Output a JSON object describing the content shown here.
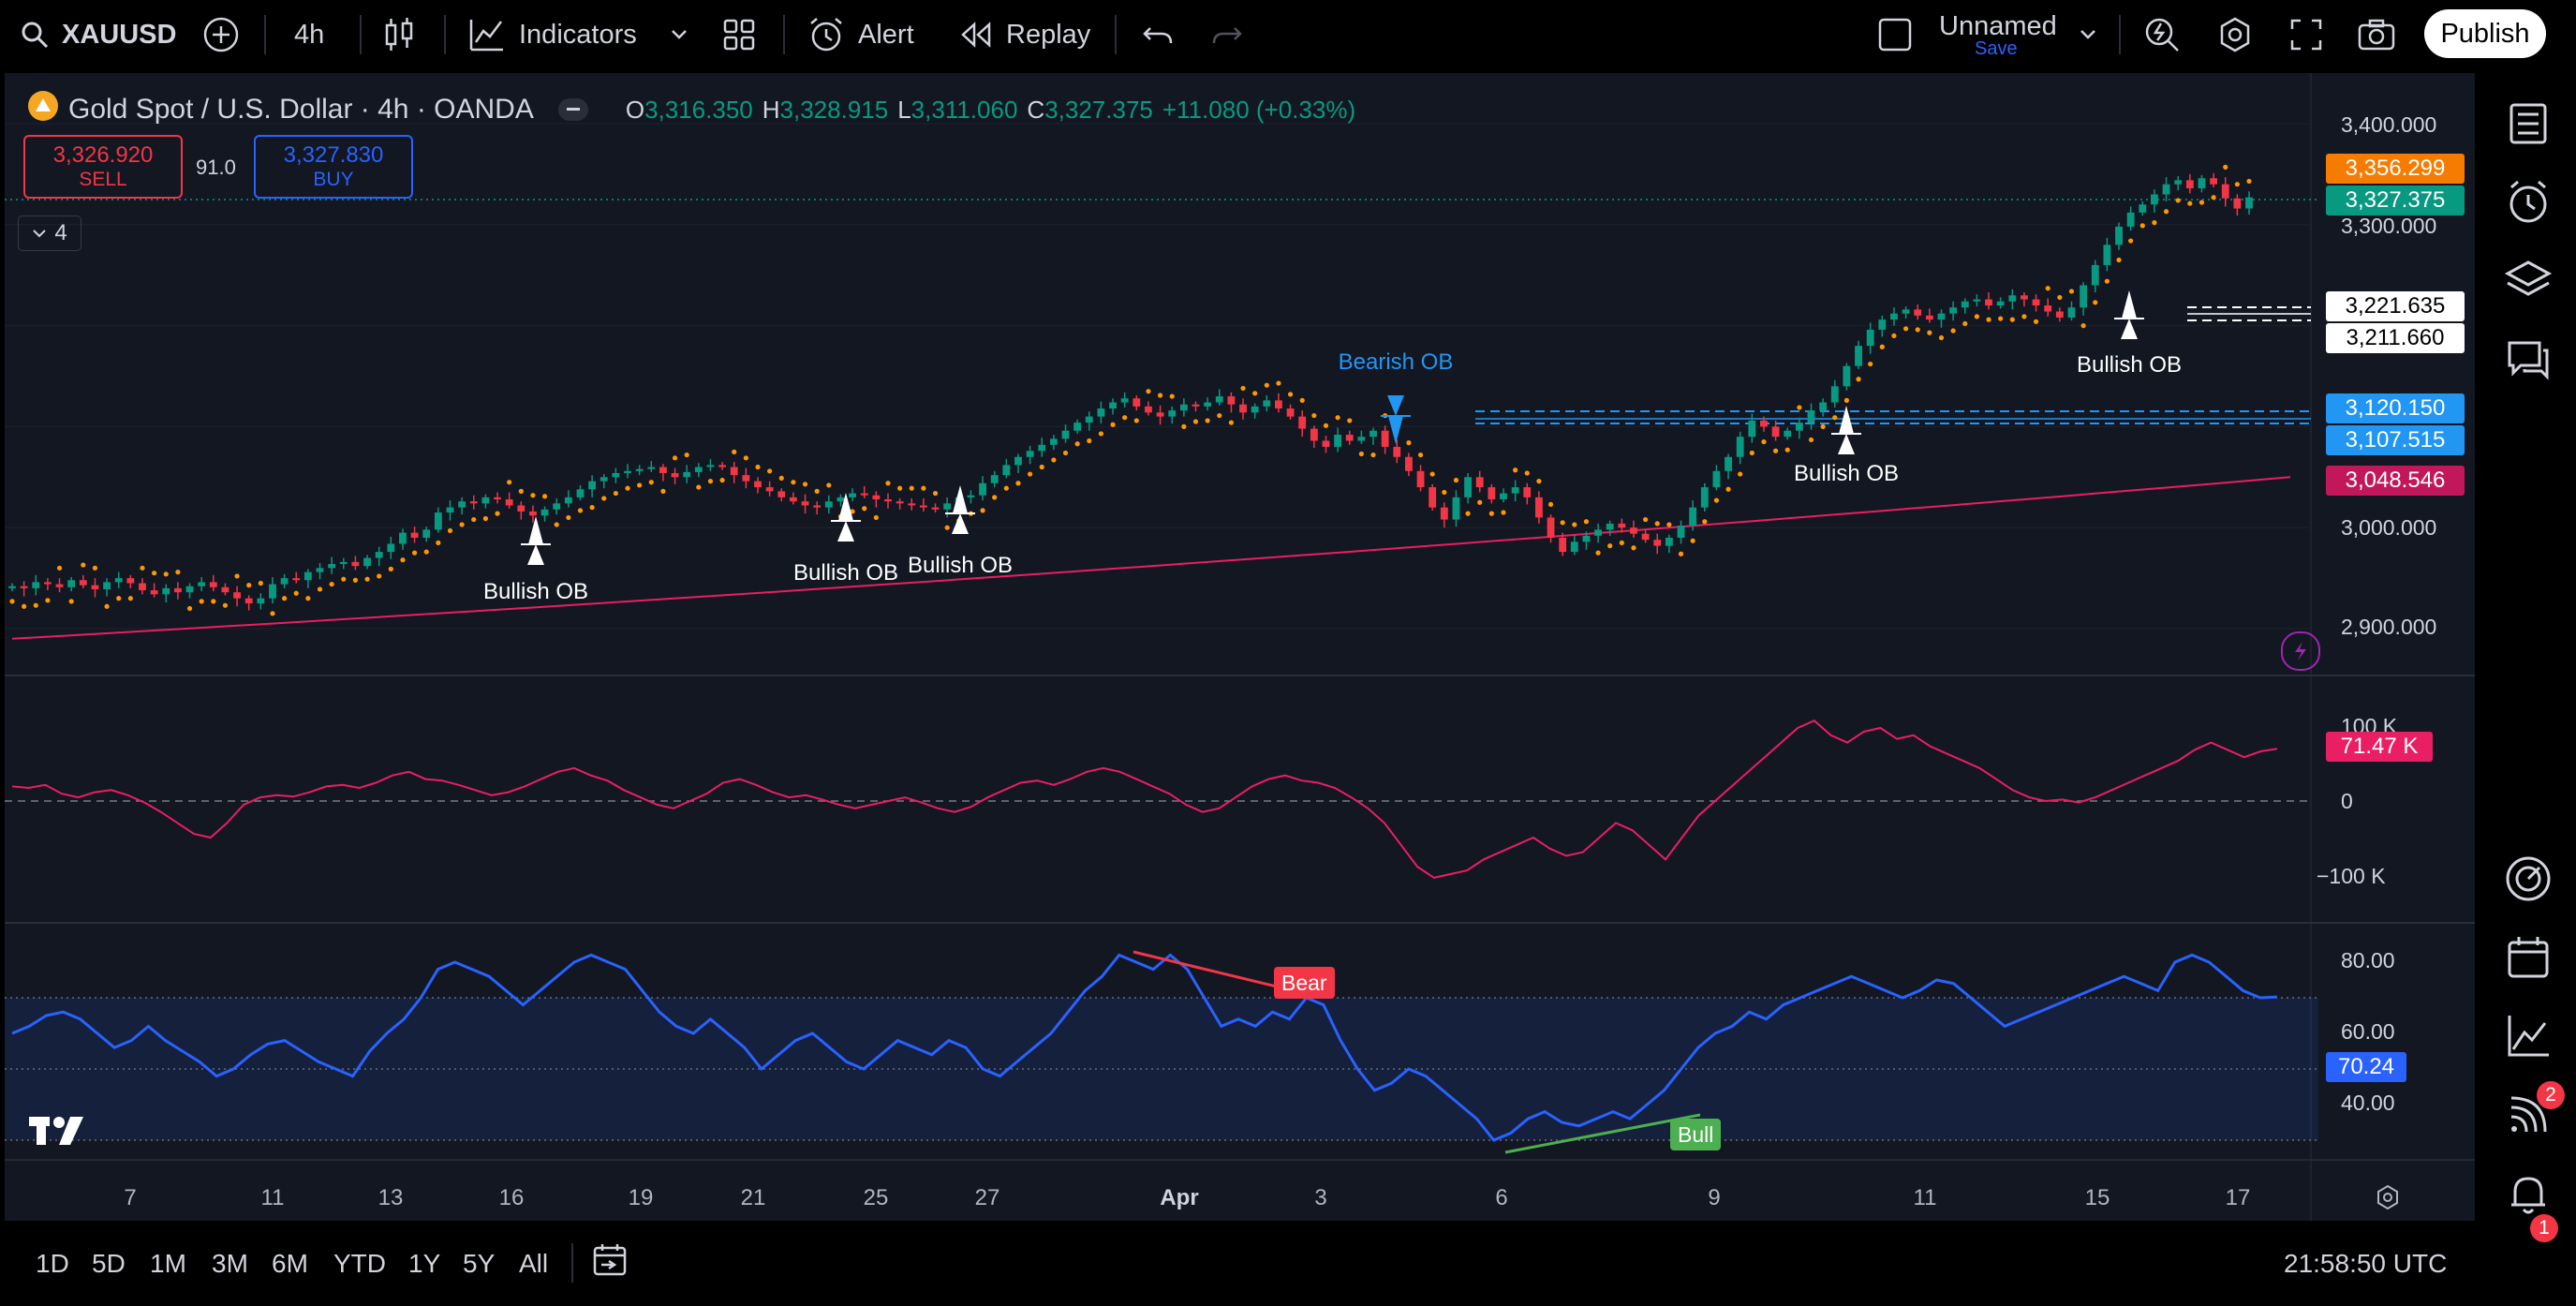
{
  "toolbar": {
    "symbol": "XAUUSD",
    "interval": "4h",
    "indicators_label": "Indicators",
    "alert_label": "Alert",
    "replay_label": "Replay",
    "layout_name": "Unnamed",
    "layout_save": "Save",
    "publish_label": "Publish"
  },
  "legend": {
    "title": "Gold Spot / U.S. Dollar · 4h · OANDA",
    "o_key": "O",
    "o": "3,316.350",
    "h_key": "H",
    "h": "3,328.915",
    "l_key": "L",
    "l": "3,311.060",
    "c_key": "C",
    "c": "3,327.375",
    "change": "+11.080 (+0.33%)",
    "sell_price": "3,326.920",
    "sell_label": "SELL",
    "spread": "91.0",
    "buy_price": "3,327.830",
    "buy_label": "BUY",
    "collapsed_count": "4"
  },
  "price_axis": [
    "3,400.000",
    "3,300.000",
    "3,000.000",
    "2,900.000"
  ],
  "price_tags": [
    {
      "text": "3,356.299",
      "bg": "#f57c00",
      "fg": "#ffffff"
    },
    {
      "text": "3,327.375",
      "bg": "#089981",
      "fg": "#ffffff"
    },
    {
      "text": "3,221.635",
      "bg": "#ffffff",
      "fg": "#000000"
    },
    {
      "text": "3,211.660",
      "bg": "#ffffff",
      "fg": "#000000"
    },
    {
      "text": "3,120.150",
      "bg": "#2196f3",
      "fg": "#ffffff"
    },
    {
      "text": "3,107.515",
      "bg": "#2196f3",
      "fg": "#ffffff"
    },
    {
      "text": "3,048.546",
      "bg": "#c2185b",
      "fg": "#ffffff"
    }
  ],
  "osc_axis": [
    "100 K",
    "0",
    "−100 K"
  ],
  "osc_tag": "71.47 K",
  "rsi_axis": [
    "80.00",
    "60.00",
    "40.00"
  ],
  "rsi_tag": "70.24",
  "ob_labels": [
    "Bullish OB",
    "Bullish OB",
    "Bullish OB",
    "Bearish OB",
    "Bullish OB",
    "Bullish OB"
  ],
  "signals": {
    "bear": "Bear",
    "bull": "Bull"
  },
  "time_axis": [
    "7",
    "11",
    "13",
    "16",
    "19",
    "21",
    "25",
    "27",
    "Apr",
    "3",
    "6",
    "9",
    "11",
    "15",
    "17"
  ],
  "ranges": [
    "1D",
    "5D",
    "1M",
    "3M",
    "6M",
    "YTD",
    "1Y",
    "5Y",
    "All"
  ],
  "clock": "21:58:50 UTC",
  "badges": {
    "streams": "2",
    "notifications": "1"
  },
  "colors": {
    "up": "#089981",
    "down": "#f23645",
    "sar": "#ff9800",
    "ma": "#e91e63",
    "rsi": "#2962ff",
    "osc": "#e91e63"
  },
  "chart_data": {
    "type": "candlestick",
    "ylim": [
      2880,
      3420
    ],
    "close": [
      2942,
      2940,
      2946,
      2944,
      2941,
      2948,
      2943,
      2939,
      2946,
      2950,
      2945,
      2938,
      2934,
      2940,
      2936,
      2942,
      2946,
      2941,
      2936,
      2930,
      2925,
      2930,
      2944,
      2950,
      2948,
      2956,
      2960,
      2964,
      2966,
      2962,
      2970,
      2976,
      2984,
      2995,
      2990,
      2998,
      3015,
      3020,
      3026,
      3024,
      3030,
      3028,
      3022,
      3016,
      3012,
      3018,
      3024,
      3030,
      3038,
      3046,
      3050,
      3054,
      3056,
      3058,
      3060,
      3054,
      3050,
      3055,
      3060,
      3062,
      3060,
      3052,
      3046,
      3040,
      3036,
      3030,
      3026,
      3022,
      3020,
      3026,
      3030,
      3034,
      3032,
      3028,
      3026,
      3024,
      3022,
      3020,
      3018,
      3024,
      3030,
      3032,
      3044,
      3052,
      3062,
      3070,
      3076,
      3082,
      3088,
      3096,
      3104,
      3110,
      3118,
      3124,
      3128,
      3120,
      3114,
      3110,
      3116,
      3122,
      3120,
      3124,
      3130,
      3122,
      3114,
      3120,
      3126,
      3118,
      3110,
      3098,
      3086,
      3080,
      3092,
      3086,
      3090,
      3096,
      3080,
      3070,
      3056,
      3040,
      3020,
      3008,
      3030,
      3050,
      3040,
      3028,
      3034,
      3040,
      3030,
      3010,
      2990,
      2976,
      2986,
      2992,
      2998,
      3004,
      3000,
      2994,
      2988,
      2982,
      2990,
      3002,
      3020,
      3040,
      3056,
      3070,
      3090,
      3106,
      3100,
      3090,
      3096,
      3104,
      3116,
      3124,
      3140,
      3160,
      3180,
      3196,
      3206,
      3212,
      3216,
      3210,
      3206,
      3212,
      3218,
      3224,
      3226,
      3220,
      3224,
      3230,
      3226,
      3220,
      3214,
      3208,
      3218,
      3240,
      3260,
      3280,
      3298,
      3312,
      3320,
      3330,
      3340,
      3344,
      3336,
      3346,
      3340,
      3326,
      3316,
      3327
    ],
    "sma": {
      "start": 2890,
      "end": 3050
    },
    "osc_range": [
      -140000,
      160000
    ],
    "osc": [
      20000,
      18000,
      22000,
      10000,
      5000,
      12000,
      15000,
      8000,
      -2000,
      -15000,
      -30000,
      -45000,
      -50000,
      -30000,
      -5000,
      5000,
      8000,
      6000,
      12000,
      20000,
      22000,
      18000,
      25000,
      35000,
      40000,
      30000,
      28000,
      22000,
      15000,
      8000,
      12000,
      20000,
      30000,
      40000,
      45000,
      35000,
      28000,
      15000,
      5000,
      -5000,
      -10000,
      0,
      10000,
      25000,
      30000,
      22000,
      12000,
      5000,
      8000,
      2000,
      -5000,
      -10000,
      -5000,
      0,
      5000,
      -2000,
      -10000,
      -15000,
      -8000,
      5000,
      15000,
      25000,
      28000,
      22000,
      30000,
      40000,
      45000,
      40000,
      30000,
      20000,
      10000,
      -5000,
      -15000,
      -10000,
      5000,
      20000,
      30000,
      35000,
      28000,
      25000,
      18000,
      5000,
      -10000,
      -30000,
      -60000,
      -90000,
      -105000,
      -100000,
      -95000,
      -80000,
      -70000,
      -60000,
      -50000,
      -65000,
      -75000,
      -70000,
      -50000,
      -30000,
      -40000,
      -60000,
      -80000,
      -50000,
      -20000,
      0,
      20000,
      40000,
      60000,
      80000,
      100000,
      110000,
      90000,
      80000,
      95000,
      100000,
      85000,
      90000,
      75000,
      65000,
      55000,
      45000,
      30000,
      15000,
      5000,
      0,
      2000,
      -2000,
      5000,
      15000,
      25000,
      35000,
      45000,
      55000,
      70000,
      80000,
      70000,
      60000,
      68000,
      71470
    ],
    "rsi_range": [
      25,
      90
    ],
    "rsi": [
      60,
      62,
      65,
      66,
      64,
      60,
      56,
      58,
      62,
      58,
      55,
      52,
      48,
      50,
      54,
      57,
      58,
      55,
      52,
      50,
      48,
      55,
      60,
      64,
      70,
      78,
      80,
      78,
      76,
      72,
      68,
      72,
      76,
      80,
      82,
      80,
      78,
      72,
      66,
      62,
      60,
      64,
      60,
      56,
      50,
      54,
      58,
      60,
      56,
      52,
      50,
      54,
      58,
      56,
      54,
      58,
      56,
      50,
      48,
      52,
      56,
      60,
      66,
      72,
      76,
      82,
      80,
      78,
      82,
      78,
      70,
      62,
      64,
      62,
      66,
      64,
      70,
      68,
      58,
      50,
      44,
      46,
      50,
      48,
      44,
      40,
      36,
      30,
      32,
      36,
      38,
      35,
      34,
      36,
      38,
      36,
      40,
      44,
      50,
      56,
      60,
      62,
      66,
      64,
      68,
      70,
      72,
      74,
      76,
      74,
      72,
      70,
      72,
      75,
      74,
      70,
      66,
      62,
      64,
      66,
      68,
      70,
      72,
      74,
      76,
      74,
      72,
      80,
      82,
      80,
      76,
      72,
      70,
      70.24
    ],
    "rsi_bands": [
      70,
      50,
      30
    ]
  }
}
